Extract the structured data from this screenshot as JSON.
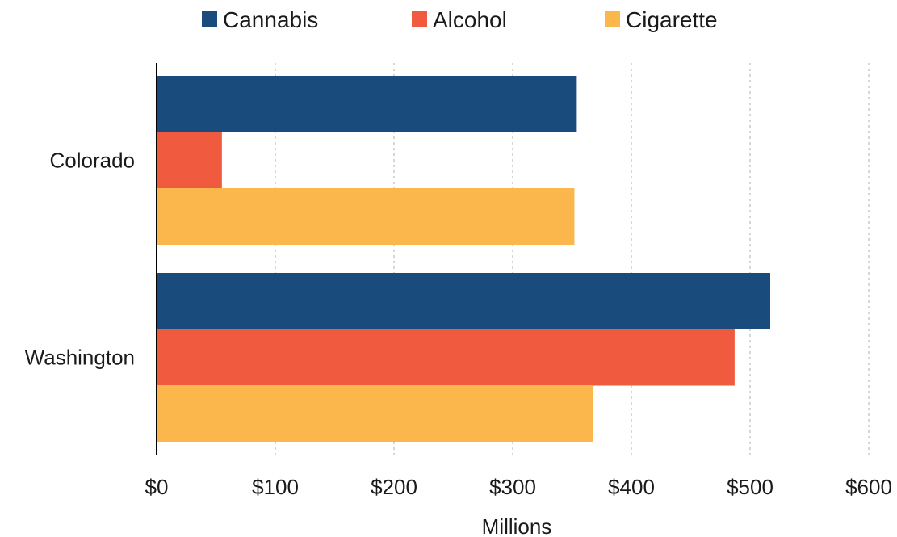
{
  "chart_data": {
    "type": "bar",
    "orientation": "horizontal",
    "categories": [
      "Colorado",
      "Washington"
    ],
    "series": [
      {
        "name": "Cannabis",
        "color": "#1a4b7d",
        "values": [
          354,
          517
        ]
      },
      {
        "name": "Alcohol",
        "color": "#f05a3f",
        "values": [
          55,
          487
        ]
      },
      {
        "name": "Cigarette",
        "color": "#fbb64c",
        "values": [
          352,
          368
        ]
      }
    ],
    "xlabel": "Millions",
    "ylabel": "",
    "xlim": [
      0,
      600
    ],
    "x_ticks": [
      0,
      100,
      200,
      300,
      400,
      500,
      600
    ],
    "x_tick_labels": [
      "$0",
      "$100",
      "$200",
      "$300",
      "$400",
      "$500",
      "$600"
    ],
    "grid": "vertical dotted",
    "legend_position": "top"
  }
}
